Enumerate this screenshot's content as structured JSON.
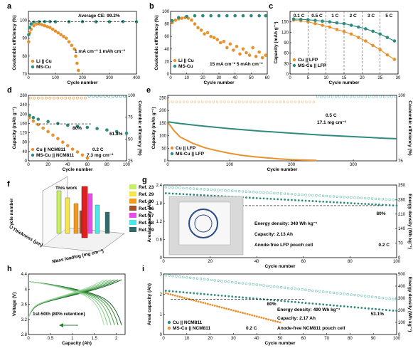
{
  "colors": {
    "orange": "#E8922E",
    "teal": "#2E8B7E",
    "tealLight": "#6CC2B5",
    "orangeLight": "#F3C48A"
  },
  "chart_data": [
    {
      "id": "a",
      "type": "scatter",
      "letter": "a",
      "xlabel": "Cycle number",
      "ylabel": "Coulombic efficiency (%)",
      "xlim": [
        0,
        400
      ],
      "ylim": [
        70,
        105
      ],
      "xticks": [
        0,
        100,
        200,
        300,
        400
      ],
      "yticks": [
        70,
        80,
        90,
        100
      ],
      "annotations": [
        "Average CE: 99.2%",
        "1 mA cm⁻² 1 mAh cm⁻²"
      ],
      "series": [
        {
          "name": "Li || Cu",
          "color": "orange",
          "x": [
            1,
            5,
            10,
            20,
            30,
            40,
            50,
            60,
            70,
            80,
            90,
            100,
            110,
            120,
            130,
            140,
            150,
            160,
            170,
            175,
            180,
            185
          ],
          "y": [
            88,
            93,
            95,
            97,
            98,
            98,
            97.5,
            97,
            96.5,
            96,
            95,
            94,
            93,
            92,
            91,
            90,
            88,
            86,
            84,
            80,
            76,
            72
          ]
        },
        {
          "name": "MS-Cu",
          "color": "teal",
          "x": [
            1,
            5,
            10,
            20,
            40,
            60,
            80,
            100,
            150,
            200,
            250,
            300,
            350,
            400
          ],
          "y": [
            92,
            96,
            98,
            99,
            99.2,
            99.3,
            99.3,
            99.2,
            99.2,
            99.3,
            99.2,
            99.2,
            99.3,
            99.2
          ]
        }
      ]
    },
    {
      "id": "b",
      "type": "scatter",
      "letter": "b",
      "xlabel": "Cycle number",
      "ylabel": "Coulombic efficiency (%)",
      "xlim": [
        0,
        60
      ],
      "ylim": [
        0,
        100
      ],
      "xticks": [
        0,
        10,
        20,
        30,
        40,
        50,
        60
      ],
      "yticks": [
        0,
        20,
        40,
        60,
        80,
        100
      ],
      "annotations": [
        "15 mA cm⁻² 5 mAh cm⁻²"
      ],
      "series": [
        {
          "name": "Li || Cu",
          "color": "orange",
          "x": [
            1,
            3,
            5,
            7,
            9,
            11,
            13,
            15,
            17,
            19,
            21,
            23,
            25,
            27,
            29,
            31,
            33,
            35,
            37,
            39,
            41,
            43,
            45,
            47,
            49,
            51,
            53,
            55,
            57,
            59
          ],
          "y": [
            82,
            86,
            88,
            89,
            90,
            89,
            86,
            80,
            74,
            70,
            64,
            66,
            60,
            58,
            55,
            50,
            52,
            42,
            48,
            38,
            44,
            32,
            40,
            34,
            30,
            42,
            28,
            35,
            26,
            30
          ]
        },
        {
          "name": "MS-Cu",
          "color": "teal",
          "x": [
            1,
            5,
            10,
            15,
            20,
            25,
            30,
            35,
            40,
            45,
            50,
            55,
            59
          ],
          "y": [
            85,
            90,
            92,
            93,
            93,
            93,
            93,
            93,
            93,
            93,
            93,
            93,
            93
          ]
        }
      ]
    },
    {
      "id": "c",
      "type": "line",
      "letter": "c",
      "xlabel": "Cycle number",
      "ylabel": "Capacity (mAh g⁻¹)",
      "xlim": [
        0,
        30
      ],
      "ylim": [
        0,
        180
      ],
      "xticks": [
        0,
        5,
        10,
        15,
        20,
        25,
        30
      ],
      "yticks": [
        0,
        30,
        60,
        90,
        120,
        150
      ],
      "rate_labels": [
        "0.1 C",
        "0.5 C",
        "1 C",
        "2 C",
        "3 C",
        "5 C"
      ],
      "rate_boundaries": [
        5,
        10,
        15,
        20,
        25
      ],
      "series": [
        {
          "name": "Cu || LFP",
          "color": "orange",
          "x": [
            1,
            3,
            5,
            7,
            9,
            11,
            13,
            15,
            17,
            19,
            21,
            23,
            25,
            27,
            29
          ],
          "y": [
            155,
            153,
            150,
            145,
            140,
            135,
            128,
            122,
            115,
            105,
            95,
            82,
            70,
            55,
            42
          ]
        },
        {
          "name": "MS-Cu || LFP",
          "color": "teal",
          "x": [
            1,
            3,
            5,
            7,
            9,
            11,
            13,
            15,
            17,
            19,
            21,
            23,
            25,
            27,
            29
          ],
          "y": [
            158,
            157,
            156,
            154,
            152,
            150,
            147,
            145,
            140,
            135,
            130,
            123,
            115,
            105,
            95
          ]
        }
      ]
    },
    {
      "id": "d",
      "type": "scatter",
      "letter": "d",
      "xlabel": "Cycle number",
      "ylabel": "Capacity (mAh g⁻¹)",
      "y2label": "Coulombic efficiency (%)",
      "xlim": [
        0,
        100
      ],
      "ylim": [
        0,
        280
      ],
      "y2lim": [
        25,
        100
      ],
      "xticks": [
        0,
        20,
        40,
        60,
        80,
        100
      ],
      "yticks": [
        0,
        40,
        80,
        120,
        160,
        200,
        240,
        280
      ],
      "y2ticks": [
        25,
        50,
        75,
        100
      ],
      "annotations": [
        "80%",
        "61.8%",
        "0.2 C",
        "7.3 mg cm⁻²"
      ],
      "series": [
        {
          "name": "Cu || NCM811",
          "color": "orange",
          "x": [
            1,
            5,
            10,
            15,
            20,
            25,
            30,
            35,
            40,
            45,
            50,
            55,
            60
          ],
          "y": [
            185,
            170,
            155,
            140,
            125,
            110,
            95,
            80,
            65,
            50,
            38,
            25,
            12
          ]
        },
        {
          "name": "MS-Cu || NCM811",
          "color": "teal",
          "x": [
            1,
            5,
            10,
            20,
            30,
            40,
            50,
            60,
            70,
            80,
            90,
            100
          ],
          "y": [
            195,
            185,
            178,
            168,
            160,
            152,
            148,
            143,
            138,
            132,
            125,
            118
          ]
        }
      ]
    },
    {
      "id": "e",
      "type": "scatter",
      "letter": "e",
      "xlabel": "Cycle number",
      "ylabel": "Capacity (mAh g⁻¹)",
      "y2label": "Coulombic efficiency (%)",
      "xlim": [
        0,
        370
      ],
      "ylim": [
        0,
        260
      ],
      "y2lim": [
        75,
        100
      ],
      "xticks": [
        0,
        100,
        200,
        300
      ],
      "yticks": [
        0,
        50,
        100,
        150,
        200,
        250
      ],
      "y2ticks": [
        75,
        100
      ],
      "annotations": [
        "0.5 C",
        "17.1 mg cm⁻²"
      ],
      "series": [
        {
          "name": "Cu || LFP",
          "color": "orange",
          "x": [
            1,
            10,
            20,
            40,
            60,
            80,
            100,
            120,
            140,
            160,
            180,
            200,
            220,
            240
          ],
          "y": [
            150,
            120,
            95,
            70,
            52,
            40,
            30,
            22,
            16,
            12,
            8,
            5,
            3,
            2
          ]
        },
        {
          "name": "MS-Cu || LFP",
          "color": "teal",
          "x": [
            1,
            20,
            50,
            100,
            150,
            200,
            250,
            300,
            350,
            370
          ],
          "y": [
            155,
            148,
            140,
            128,
            118,
            110,
            102,
            96,
            90,
            88
          ]
        }
      ]
    },
    {
      "id": "f",
      "type": "bar3d",
      "letter": "f",
      "title": "This work",
      "xlabel": "Thickness (μm)",
      "ylabel": "Mass loading (mg cm⁻²)",
      "zlabel": "Cycle number",
      "legend": [
        "Ref. 23",
        "Ref. 29",
        "Ref. 30",
        "Ref. 66",
        "Ref. 67",
        "Ref. 68",
        "Ref. 69"
      ],
      "legend_colors": [
        "#C8F066",
        "#F5E74B",
        "#F39A1C",
        "#A0522D",
        "#E84BE8",
        "#4BE8E8",
        "#2E6B6B"
      ]
    },
    {
      "id": "g",
      "type": "scatter",
      "letter": "g",
      "xlabel": "Cycle number",
      "ylabel": "Areal capacity (Ah)",
      "y2label": "Energy density (Wh kg⁻¹)",
      "xlim": [
        0,
        100
      ],
      "ylim": [
        0.0,
        2.4
      ],
      "y2lim": [
        0,
        350
      ],
      "xticks": [
        0,
        20,
        40,
        60,
        80,
        100
      ],
      "yticks": [
        0.0,
        0.6,
        1.2,
        1.8,
        2.4
      ],
      "y2ticks": [
        0,
        70,
        140,
        210,
        280,
        350
      ],
      "annotations": [
        "80%",
        "Energy density: 340 Wh kg⁻¹",
        "Capacity: 2.13 Ah",
        "Anode-free LFP pouch cell",
        "0.2 C"
      ],
      "series": [
        {
          "name": "capacity",
          "color": "teal",
          "x": [
            1,
            10,
            20,
            30,
            40,
            50,
            60,
            70,
            80,
            90,
            100
          ],
          "y": [
            2.13,
            2.07,
            2.02,
            1.98,
            1.94,
            1.9,
            1.86,
            1.82,
            1.78,
            1.75,
            1.72
          ]
        },
        {
          "name": "energy",
          "color": "tealLight",
          "x": [
            1,
            10,
            20,
            30,
            40,
            50,
            60,
            70,
            80,
            90,
            100
          ],
          "y": [
            340,
            332,
            325,
            318,
            312,
            306,
            300,
            294,
            288,
            282,
            278
          ]
        }
      ]
    },
    {
      "id": "h",
      "type": "line",
      "letter": "h",
      "xlabel": "Capacity (Ah)",
      "ylabel": "Voltage (V)",
      "xlim": [
        0,
        2.2
      ],
      "ylim": [
        2.8,
        4.4
      ],
      "xticks": [
        0.0,
        0.5,
        1.0,
        1.5,
        2.0
      ],
      "yticks": [
        2.8,
        3.2,
        3.6,
        4.0,
        4.4
      ],
      "annotations": [
        "1st-50th (80% retention)"
      ]
    },
    {
      "id": "i",
      "type": "scatter",
      "letter": "i",
      "xlabel": "Cycle number",
      "ylabel": "Areal capacity (Ah)",
      "y2label": "Energy density (Wh kg⁻¹)",
      "xlim": [
        0,
        100
      ],
      "ylim": [
        0,
        3
      ],
      "y2lim": [
        0,
        500
      ],
      "xticks": [
        0,
        10,
        20,
        30,
        40,
        50,
        60,
        70,
        80,
        90,
        100
      ],
      "yticks": [
        0,
        1,
        2,
        3
      ],
      "y2ticks": [
        0,
        100,
        200,
        300,
        400,
        500
      ],
      "annotations": [
        "80%",
        "53.1%",
        "Energy density: 490 Wh kg⁻¹",
        "Capacity: 2.17 Ah",
        "0.2 C",
        "Anode-free NCM811 pouch cell"
      ],
      "series": [
        {
          "name": "Cu || NCM811",
          "color": "teal",
          "x": [
            1,
            10,
            20,
            30,
            40,
            50,
            60,
            70,
            80,
            90,
            100
          ],
          "y": [
            2.17,
            2.05,
            1.95,
            1.86,
            1.78,
            1.7,
            1.6,
            1.5,
            1.4,
            1.3,
            1.17
          ]
        },
        {
          "name": "MS-Cu || NCM811",
          "color": "orange",
          "x": [
            1,
            5,
            10,
            15,
            20,
            25,
            30,
            35,
            40,
            45,
            50
          ],
          "y": [
            2.05,
            1.95,
            1.8,
            1.65,
            1.5,
            1.35,
            1.2,
            1.05,
            0.9,
            0.75,
            0.6
          ]
        },
        {
          "name": "energy",
          "color": "tealLight",
          "x": [
            1,
            10,
            20,
            30,
            40,
            50,
            60,
            70,
            80,
            90,
            100
          ],
          "y": [
            490,
            472,
            455,
            438,
            422,
            405,
            385,
            365,
            340,
            315,
            290
          ]
        }
      ]
    }
  ]
}
